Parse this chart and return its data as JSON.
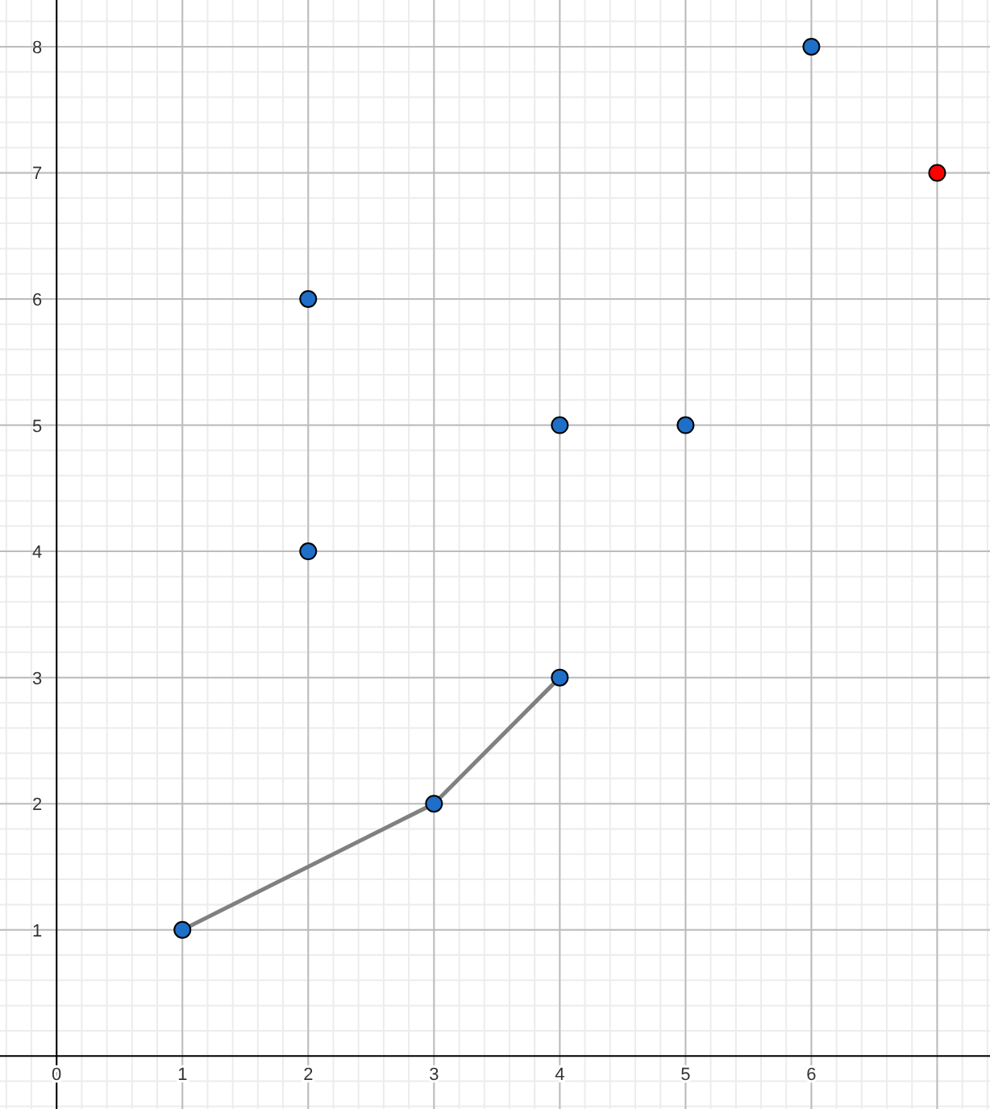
{
  "chart_data": {
    "type": "scatter",
    "xlim": [
      -0.45,
      7.42
    ],
    "ylim": [
      -0.42,
      8.37
    ],
    "xticks": [
      0,
      1,
      2,
      3,
      4,
      5,
      6,
      {
        "value": 7,
        "label": null
      }
    ],
    "yticks": [
      1,
      2,
      3,
      4,
      5,
      6,
      7,
      8
    ],
    "grid": true,
    "series": [
      {
        "type": "line",
        "color": "#808080",
        "x": [
          1,
          3,
          4
        ],
        "values": [
          1,
          2,
          3
        ],
        "marker": "none"
      },
      {
        "color": "#1e6fc8",
        "x": [
          1,
          3,
          4,
          2,
          2,
          4,
          5,
          6
        ],
        "values": [
          1,
          2,
          3,
          4,
          6,
          5,
          5,
          8
        ],
        "marker": "circle"
      },
      {
        "color": "#ff0000",
        "x": [
          7
        ],
        "values": [
          7
        ],
        "marker": "circle"
      }
    ]
  }
}
